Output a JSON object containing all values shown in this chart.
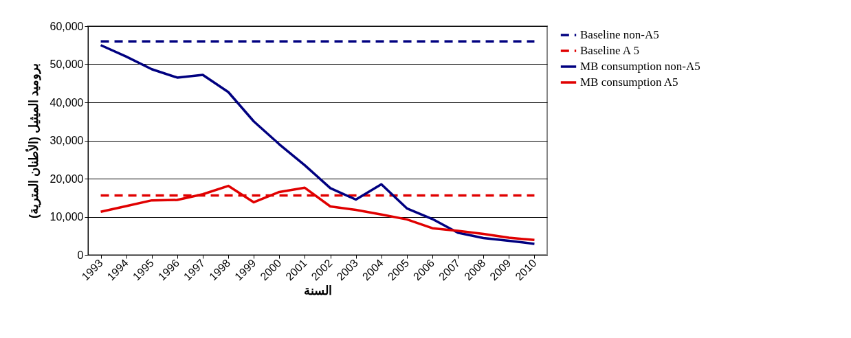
{
  "chart_data": {
    "type": "line",
    "xlabel": "السنة",
    "ylabel": "بروميد الميثيل (الأطنان المترية)",
    "categories": [
      "1993",
      "1994",
      "1995",
      "1996",
      "1997",
      "1998",
      "1999",
      "2000",
      "2001",
      "2002",
      "2003",
      "2004",
      "2005",
      "2006",
      "2007",
      "2008",
      "2009",
      "2010"
    ],
    "series": [
      {
        "name": "Baseline non-A5",
        "color": "#000080",
        "line_style": "dashed",
        "values": [
          56000,
          56000,
          56000,
          56000,
          56000,
          56000,
          56000,
          56000,
          56000,
          56000,
          56000,
          56000,
          56000,
          56000,
          56000,
          56000,
          56000,
          56000
        ]
      },
      {
        "name": "Baseline A 5",
        "color": "#e00000",
        "line_style": "dashed",
        "values": [
          15600,
          15600,
          15600,
          15600,
          15600,
          15600,
          15600,
          15600,
          15600,
          15600,
          15600,
          15600,
          15600,
          15600,
          15600,
          15600,
          15600,
          15600
        ]
      },
      {
        "name": "MB consumption non-A5",
        "color": "#000080",
        "line_style": "solid",
        "values": [
          55000,
          52000,
          48700,
          46500,
          47200,
          42700,
          35000,
          29000,
          23500,
          17500,
          14500,
          18500,
          12200,
          9400,
          5800,
          4400,
          3700,
          2900
        ]
      },
      {
        "name": "MB consumption A5",
        "color": "#e00000",
        "line_style": "solid",
        "values": [
          11300,
          12800,
          14300,
          14400,
          15900,
          18100,
          13800,
          16500,
          17600,
          12700,
          11800,
          10600,
          9300,
          7000,
          6300,
          5500,
          4500,
          3900
        ]
      }
    ],
    "ylim": [
      0,
      60000
    ],
    "yticks": [
      {
        "value": 0,
        "label": "0"
      },
      {
        "value": 10000,
        "label": "10,000"
      },
      {
        "value": 20000,
        "label": "20,000"
      },
      {
        "value": 30000,
        "label": "30,000"
      },
      {
        "value": 40000,
        "label": "40,000"
      },
      {
        "value": 50000,
        "label": "50,000"
      },
      {
        "value": 60000,
        "label": "60,000"
      }
    ],
    "grid": "y",
    "legend": "right",
    "marker": "none"
  }
}
